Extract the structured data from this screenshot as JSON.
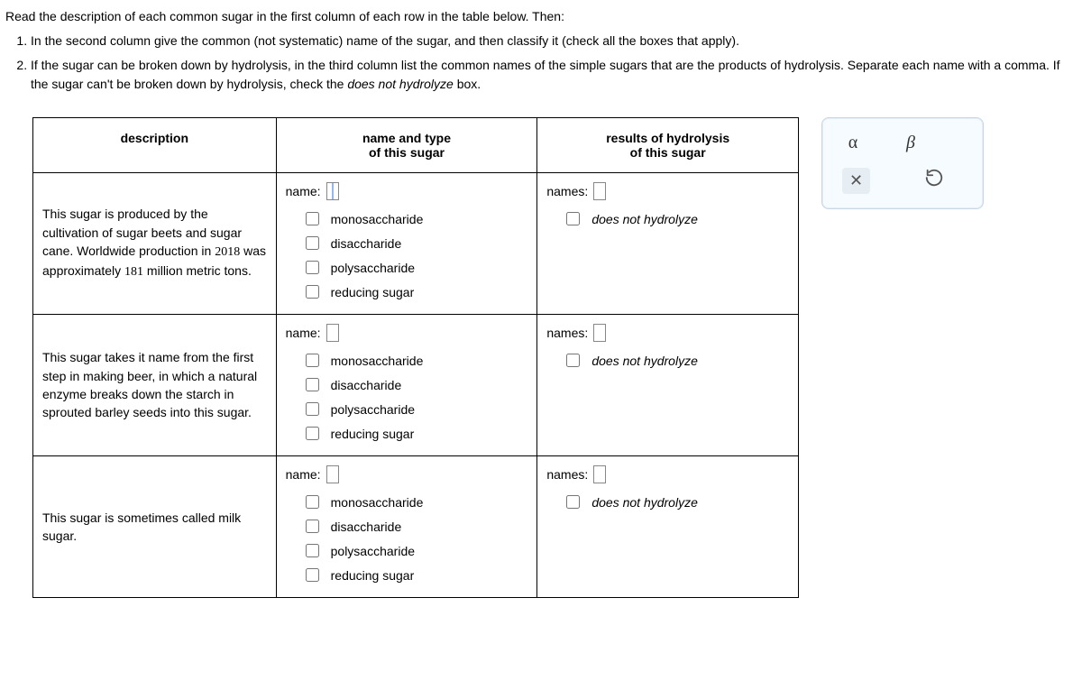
{
  "instructions": {
    "lead": "Read the description of each common sugar in the first column of each row in the table below. Then:",
    "step1": "In the second column give the common (not systematic) name of the sugar, and then classify it (check all the boxes that apply).",
    "step2_a": "If the sugar can be broken down by hydrolysis, in the third column list the common names of the simple sugars that are the products of hydrolysis. Separate each name with a comma. If the sugar can't be broken down by hydrolysis, check the ",
    "step2_em": "does not hydrolyze",
    "step2_b": " box."
  },
  "headers": {
    "c1": "description",
    "c2": "name and type\nof this sugar",
    "c3": "results of hydrolysis\nof this sugar"
  },
  "labels": {
    "name": "name:",
    "names": "names:",
    "cb_mono": "monosaccharide",
    "cb_di": "disaccharide",
    "cb_poly": "polysaccharide",
    "cb_red": "reducing sugar",
    "cb_dnh": "does not hydrolyze"
  },
  "rows": [
    {
      "desc_pre": "This sugar is produced by the cultivation of sugar beets and sugar cane. Worldwide production in ",
      "year": "2018",
      "desc_mid": " was approximately ",
      "amount": "181",
      "desc_post": " million metric tons.",
      "name_value": "",
      "names_value": "",
      "focus": true
    },
    {
      "desc_pre": "This sugar takes it name from the first step in making beer, in which a natural enzyme breaks down the starch in sprouted barley seeds into this sugar.",
      "year": "",
      "desc_mid": "",
      "amount": "",
      "desc_post": "",
      "name_value": "",
      "names_value": "",
      "focus": false
    },
    {
      "desc_pre": "This sugar is sometimes called milk sugar.",
      "year": "",
      "desc_mid": "",
      "amount": "",
      "desc_post": "",
      "name_value": "",
      "names_value": "",
      "focus": false
    }
  ],
  "palette": {
    "alpha": "α",
    "beta": "β",
    "close": "×",
    "reset_title": "reset"
  }
}
